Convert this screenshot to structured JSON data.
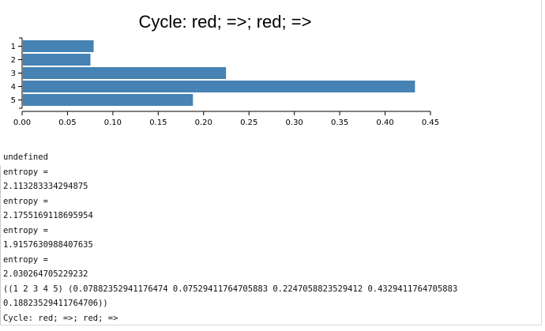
{
  "chart_data": {
    "type": "bar",
    "orientation": "horizontal",
    "title": "Cycle: red; =>; red; =>",
    "categories": [
      "1",
      "2",
      "3",
      "4",
      "5"
    ],
    "values": [
      0.07882352941176474,
      0.07529411764705883,
      0.2247058823529412,
      0.4329411764705883,
      0.18823529411764706
    ],
    "xlim": [
      0,
      0.45
    ],
    "x_ticks": [
      "0.00",
      "0.05",
      "0.10",
      "0.15",
      "0.20",
      "0.25",
      "0.30",
      "0.35",
      "0.40",
      "0.45"
    ],
    "bar_color": "#4682b4",
    "xlabel": "",
    "ylabel": "",
    "grid": false
  },
  "console": {
    "lines": [
      "undefined",
      "entropy =",
      "2.113283334294875",
      "entropy =",
      "2.1755169118695954",
      "entropy =",
      "1.9157630988407635",
      "entropy =",
      "2.030264705229232",
      "((1 2 3 4 5) (0.07882352941176474 0.07529411764705883 0.2247058823529412 0.4329411764705883",
      "0.18823529411764706))",
      "Cycle: red; =>; red; =>"
    ]
  }
}
